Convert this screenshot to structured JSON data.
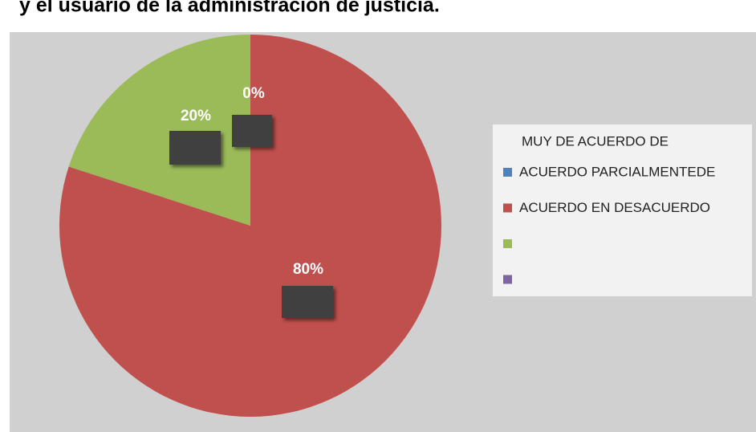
{
  "chart_data": {
    "type": "pie",
    "title": "y el usuario de la administración de justicia.",
    "legend_header": "MUY DE ACUERDO DE",
    "categories": [
      "ACUERDO PARCIALMENTEDE",
      "ACUERDO EN DESACUERDO",
      null,
      null
    ],
    "values": [
      0,
      80,
      20,
      0
    ],
    "value_labels": [
      "0%",
      "80%",
      "20%",
      null
    ],
    "colors": [
      "#4f81bd",
      "#c0504d",
      "#9bbb59",
      "#8064a2"
    ],
    "legend": "right"
  }
}
